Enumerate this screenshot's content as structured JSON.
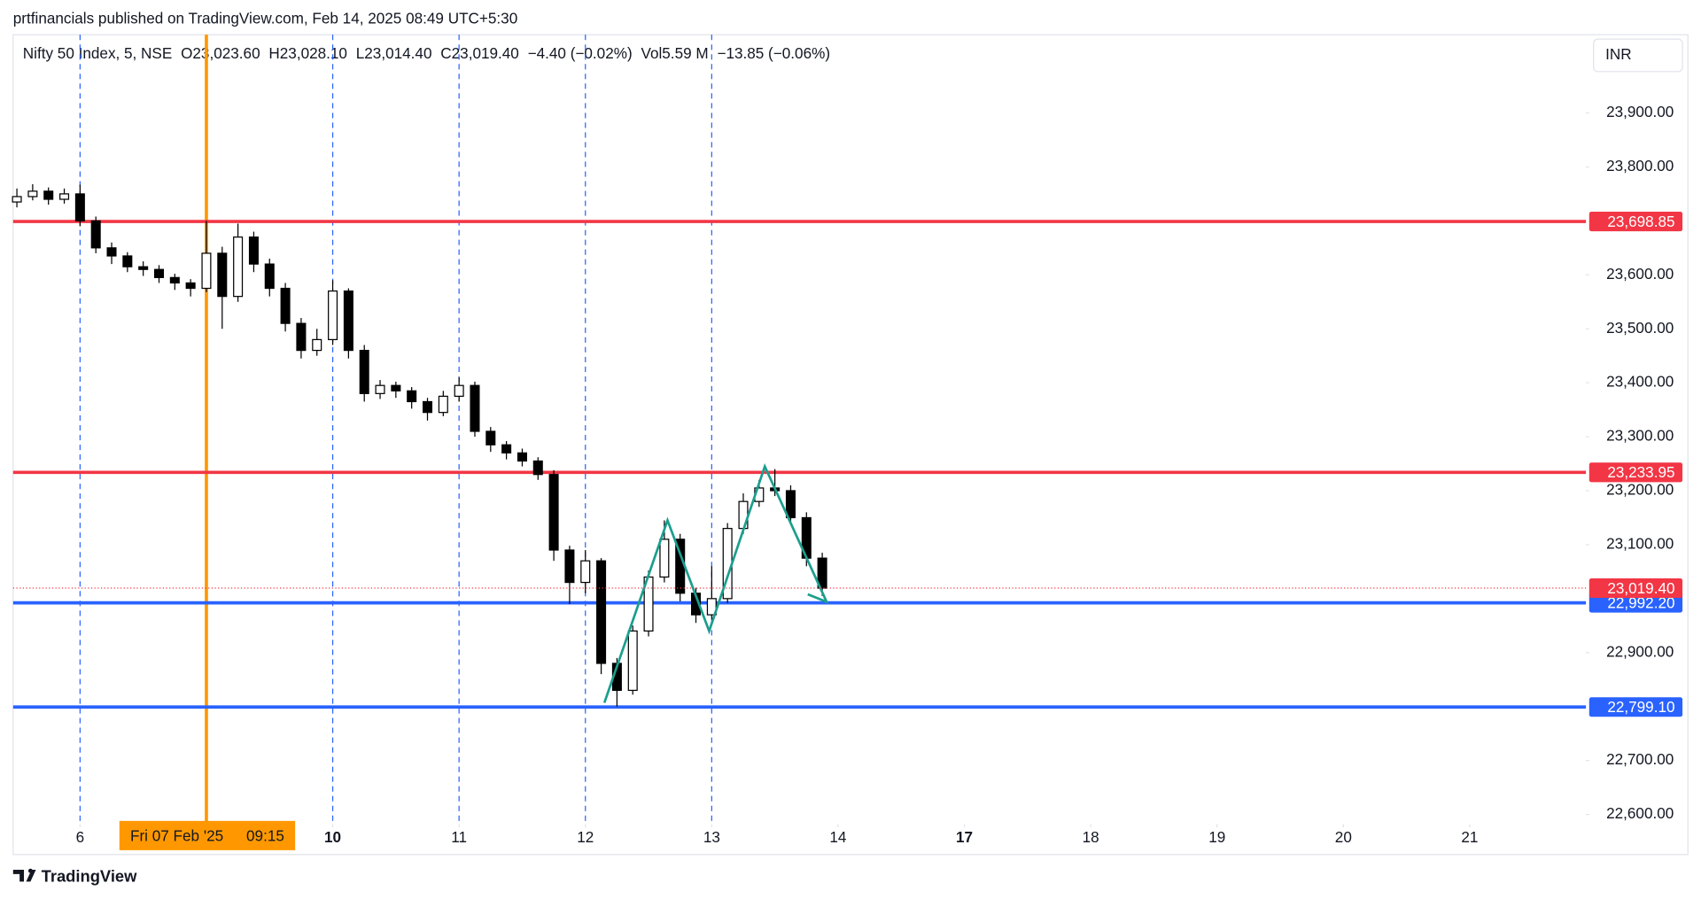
{
  "header": "prtfinancials published on TradingView.com, Feb 14, 2025 08:49 UTC+5:30",
  "footer": "TradingView",
  "chart_data": {
    "type": "candlestick",
    "legend": [
      {
        "text": "Nifty 50 Index, 5, NSE"
      },
      {
        "key": "O",
        "text": "23,023.60"
      },
      {
        "key": "H",
        "text": "23,028.10"
      },
      {
        "key": "L",
        "text": "23,014.40"
      },
      {
        "key": "C",
        "text": "23,019.40"
      },
      {
        "text": "−4.40 (−0.02%)"
      },
      {
        "key": "Vol",
        "text": "5.59 M"
      },
      {
        "text": "−13.85 (−0.06%)"
      }
    ],
    "currency": "INR",
    "xlim": [
      -0.53,
      11.92
    ],
    "ylim": [
      22582,
      24045
    ],
    "grid": false,
    "xticks": [
      {
        "value": 0,
        "label": "6"
      },
      {
        "value": 2,
        "label": "10",
        "bold": true
      },
      {
        "value": 3,
        "label": "11"
      },
      {
        "value": 4,
        "label": "12"
      },
      {
        "value": 5,
        "label": "13"
      },
      {
        "value": 6,
        "label": "14"
      },
      {
        "value": 7,
        "label": "17",
        "bold": true
      },
      {
        "value": 8,
        "label": "18"
      },
      {
        "value": 9,
        "label": "19"
      },
      {
        "value": 10,
        "label": "20"
      },
      {
        "value": 11,
        "label": "21"
      }
    ],
    "yticks": [
      {
        "value": 23900,
        "label": "23,900.00"
      },
      {
        "value": 23800,
        "label": "23,800.00"
      },
      {
        "value": 23600,
        "label": "23,600.00"
      },
      {
        "value": 23500,
        "label": "23,500.00"
      },
      {
        "value": 23400,
        "label": "23,400.00"
      },
      {
        "value": 23300,
        "label": "23,300.00"
      },
      {
        "value": 23200,
        "label": "23,200.00"
      },
      {
        "value": 23100,
        "label": "23,100.00"
      },
      {
        "value": 22900,
        "label": "22,900.00"
      },
      {
        "value": 22700,
        "label": "22,700.00"
      },
      {
        "value": 22600,
        "label": "22,600.00"
      }
    ],
    "session_breaks": [
      0,
      2,
      3,
      4,
      5
    ],
    "session_break_color": "#2962ff",
    "crosshair": {
      "x": 1,
      "date_label": "Fri 07 Feb '25",
      "time_label": "09:15",
      "color": "#ff9800"
    },
    "up_color": "#ffffff",
    "down_color": "#000000",
    "wick_color": "#000000",
    "x": [
      -0.5,
      -0.375,
      -0.25,
      -0.125,
      0,
      0.125,
      0.25,
      0.375,
      0.5,
      0.625,
      0.75,
      0.875,
      1,
      1.125,
      1.25,
      1.375,
      1.5,
      1.625,
      1.75,
      1.875,
      2,
      2.125,
      2.25,
      2.375,
      2.5,
      2.625,
      2.75,
      2.875,
      3,
      3.125,
      3.25,
      3.375,
      3.5,
      3.625,
      3.75,
      3.875,
      4,
      4.125,
      4.25,
      4.375,
      4.5,
      4.625,
      4.75,
      4.875,
      5,
      5.125,
      5.25,
      5.375,
      5.5,
      5.625,
      5.75,
      5.875
    ],
    "open": [
      23735,
      23745,
      23755,
      23740,
      23750,
      23700,
      23650,
      23635,
      23615,
      23610,
      23595,
      23585,
      23575,
      23640,
      23560,
      23670,
      23620,
      23575,
      23510,
      23460,
      23480,
      23570,
      23460,
      23380,
      23395,
      23385,
      23365,
      23345,
      23375,
      23395,
      23310,
      23285,
      23270,
      23255,
      23230,
      23090,
      23030,
      23070,
      22880,
      22830,
      22940,
      23040,
      23110,
      23010,
      22970,
      23000,
      23130,
      23180,
      23205,
      23200,
      23150,
      23075
    ],
    "high": [
      23760,
      23768,
      23762,
      23760,
      23767,
      23708,
      23660,
      23642,
      23625,
      23618,
      23602,
      23592,
      23700,
      23652,
      23695,
      23680,
      23630,
      23585,
      23520,
      23500,
      23590,
      23575,
      23470,
      23405,
      23402,
      23392,
      23372,
      23385,
      23410,
      23402,
      23318,
      23292,
      23278,
      23262,
      23238,
      23098,
      23090,
      23075,
      22890,
      22950,
      23052,
      23145,
      23120,
      23020,
      23060,
      23140,
      23195,
      23220,
      23240,
      23210,
      23160,
      23085
    ],
    "low": [
      23725,
      23738,
      23730,
      23732,
      23690,
      23640,
      23620,
      23605,
      23598,
      23585,
      23572,
      23560,
      23568,
      23500,
      23550,
      23605,
      23560,
      23495,
      23445,
      23450,
      23470,
      23445,
      23365,
      23370,
      23372,
      23352,
      23330,
      23338,
      23365,
      23300,
      23272,
      23258,
      23245,
      23220,
      23070,
      22990,
      23010,
      22860,
      22800,
      22822,
      22930,
      23030,
      22995,
      22955,
      22960,
      22992,
      23120,
      23170,
      23190,
      23140,
      23060,
      23005
    ],
    "close": [
      23745,
      23755,
      23740,
      23750,
      23700,
      23650,
      23635,
      23615,
      23610,
      23595,
      23585,
      23575,
      23640,
      23560,
      23670,
      23620,
      23575,
      23510,
      23460,
      23480,
      23570,
      23460,
      23380,
      23395,
      23385,
      23365,
      23345,
      23375,
      23395,
      23310,
      23285,
      23270,
      23255,
      23230,
      23090,
      23030,
      23070,
      22880,
      22830,
      22940,
      23040,
      23110,
      23010,
      22970,
      23000,
      23130,
      23180,
      23205,
      23200,
      23150,
      23075,
      23019.4
    ],
    "levels": {
      "values": [
        23698.85,
        23233.95,
        22992.2,
        22799.1
      ],
      "value_labels": [
        "23,698.85",
        "23,233.95",
        "22,992.20",
        "22,799.10"
      ],
      "colors": [
        "#f23645",
        "#f23645",
        "#2962ff",
        "#2962ff"
      ]
    },
    "last_price": {
      "value": 23019.4,
      "value_label": "23,019.40",
      "color": "#f23645"
    },
    "pattern": {
      "color": "#1b9e8e",
      "x": [
        4.15,
        4.65,
        4.98,
        5.42,
        5.91,
        5.76
      ],
      "values": [
        22807,
        23145,
        22940,
        23245,
        22994,
        23008
      ]
    }
  }
}
